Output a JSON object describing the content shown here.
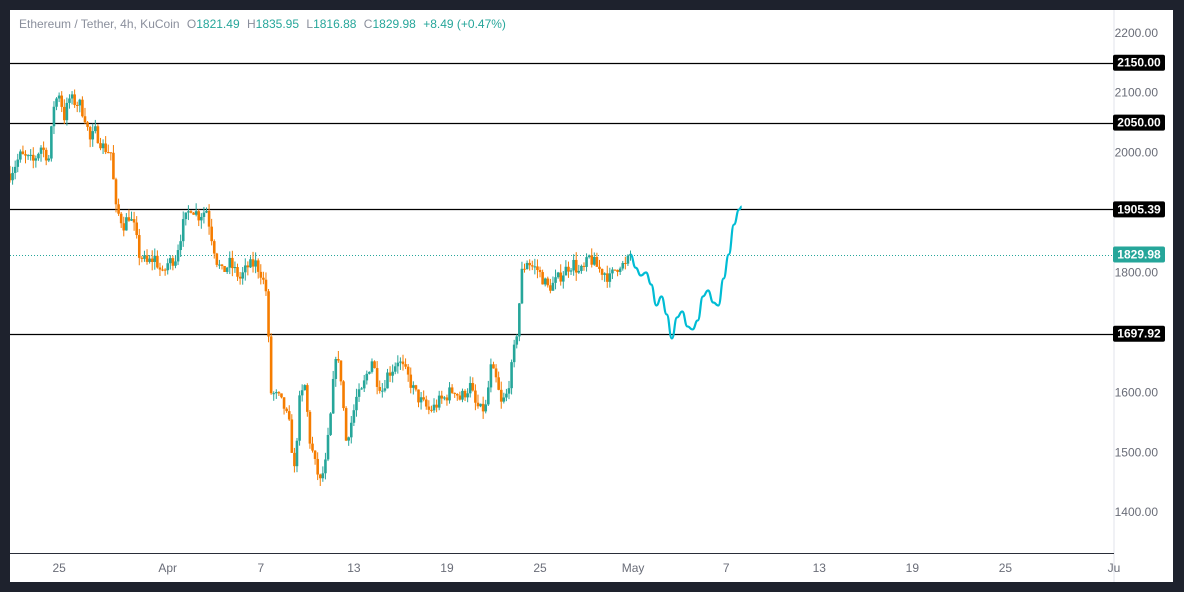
{
  "legend": {
    "symbol": "Ethereum / Tether, 4h, KuCoin",
    "open_key": "O",
    "open": "1821.49",
    "high_key": "H",
    "high": "1835.95",
    "low_key": "L",
    "low": "1816.88",
    "close_key": "C",
    "close": "1829.98",
    "change": "+8.49 (+0.47%)"
  },
  "colors": {
    "up": "#26a69a",
    "down": "#f57c00",
    "projection": "#00bcd4",
    "level": "#000000",
    "price_label": "#26a69a"
  },
  "chart_data": {
    "type": "candlestick",
    "title": "",
    "ylim": [
      1332,
      2238
    ],
    "xlim": [
      "2023-03-21T20:00",
      "2023-06-01T00:00"
    ],
    "y_ticks": [
      "1400.00",
      "1500.00",
      "1600.00",
      "1700.00",
      "1800.00",
      "1900.00",
      "2000.00",
      "2100.00",
      "2200.00"
    ],
    "x_ticks": [
      {
        "label": "25",
        "date": "2023-03-25"
      },
      {
        "label": "Apr",
        "date": "2023-04-01"
      },
      {
        "label": "7",
        "date": "2023-04-07"
      },
      {
        "label": "13",
        "date": "2023-04-13"
      },
      {
        "label": "19",
        "date": "2023-04-19"
      },
      {
        "label": "25",
        "date": "2023-04-25"
      },
      {
        "label": "May",
        "date": "2023-05-01"
      },
      {
        "label": "7",
        "date": "2023-05-07"
      },
      {
        "label": "13",
        "date": "2023-05-13"
      },
      {
        "label": "19",
        "date": "2023-05-19"
      },
      {
        "label": "25",
        "date": "2023-05-25"
      },
      {
        "label": "Ju",
        "date": "2023-06-01"
      }
    ],
    "levels": [
      {
        "value": 2150.0,
        "label": "2150.00"
      },
      {
        "value": 2050.0,
        "label": "2050.00"
      },
      {
        "value": 1905.39,
        "label": "1905.39"
      },
      {
        "value": 1697.92,
        "label": "1697.92"
      }
    ],
    "last_price": {
      "value": 1829.98,
      "label": "1829.98"
    },
    "price_path": [
      [
        "2023-03-21T20:00",
        1965
      ],
      [
        "2023-03-22T12:00",
        1995
      ],
      [
        "2023-03-23T08:00",
        1985
      ],
      [
        "2023-03-23T20:00",
        2010
      ],
      [
        "2023-03-24T08:00",
        1990
      ],
      [
        "2023-03-24T16:00",
        2080
      ],
      [
        "2023-03-25T00:00",
        2100
      ],
      [
        "2023-03-25T08:00",
        2060
      ],
      [
        "2023-03-25T16:00",
        2090
      ],
      [
        "2023-03-26T08:00",
        2080
      ],
      [
        "2023-03-26T16:00",
        2060
      ],
      [
        "2023-03-27T00:00",
        2020
      ],
      [
        "2023-03-27T08:00",
        2035
      ],
      [
        "2023-03-27T20:00",
        2010
      ],
      [
        "2023-03-28T08:00",
        2000
      ],
      [
        "2023-03-28T16:00",
        1905
      ],
      [
        "2023-03-29T04:00",
        1880
      ],
      [
        "2023-03-29T12:00",
        1895
      ],
      [
        "2023-03-29T20:00",
        1875
      ],
      [
        "2023-03-30T04:00",
        1830
      ],
      [
        "2023-03-30T16:00",
        1815
      ],
      [
        "2023-03-31T04:00",
        1825
      ],
      [
        "2023-03-31T16:00",
        1795
      ],
      [
        "2023-04-01T00:00",
        1815
      ],
      [
        "2023-04-01T12:00",
        1825
      ],
      [
        "2023-04-02T00:00",
        1880
      ],
      [
        "2023-04-02T12:00",
        1910
      ],
      [
        "2023-04-03T00:00",
        1895
      ],
      [
        "2023-04-03T12:00",
        1905
      ],
      [
        "2023-04-03T20:00",
        1860
      ],
      [
        "2023-04-04T04:00",
        1820
      ],
      [
        "2023-04-04T12:00",
        1800
      ],
      [
        "2023-04-05T00:00",
        1815
      ],
      [
        "2023-04-05T16:00",
        1790
      ],
      [
        "2023-04-06T04:00",
        1810
      ],
      [
        "2023-04-06T16:00",
        1815
      ],
      [
        "2023-04-07T00:00",
        1800
      ],
      [
        "2023-04-07T08:00",
        1770
      ],
      [
        "2023-04-07T16:00",
        1600
      ],
      [
        "2023-04-08T04:00",
        1590
      ],
      [
        "2023-04-08T12:00",
        1575
      ],
      [
        "2023-04-08T20:00",
        1545
      ],
      [
        "2023-04-09T04:00",
        1470
      ],
      [
        "2023-04-09T12:00",
        1585
      ],
      [
        "2023-04-09T20:00",
        1610
      ],
      [
        "2023-04-10T04:00",
        1520
      ],
      [
        "2023-04-10T12:00",
        1480
      ],
      [
        "2023-04-10T20:00",
        1450
      ],
      [
        "2023-04-11T04:00",
        1480
      ],
      [
        "2023-04-11T12:00",
        1560
      ],
      [
        "2023-04-11T20:00",
        1665
      ],
      [
        "2023-04-12T04:00",
        1625
      ],
      [
        "2023-04-12T12:00",
        1520
      ],
      [
        "2023-04-12T20:00",
        1550
      ],
      [
        "2023-04-13T04:00",
        1590
      ],
      [
        "2023-04-13T12:00",
        1600
      ],
      [
        "2023-04-13T20:00",
        1630
      ],
      [
        "2023-04-14T04:00",
        1655
      ],
      [
        "2023-04-14T12:00",
        1620
      ],
      [
        "2023-04-14T20:00",
        1605
      ],
      [
        "2023-04-15T04:00",
        1630
      ],
      [
        "2023-04-15T12:00",
        1640
      ],
      [
        "2023-04-15T20:00",
        1655
      ],
      [
        "2023-04-16T04:00",
        1640
      ],
      [
        "2023-04-16T12:00",
        1625
      ],
      [
        "2023-04-16T20:00",
        1605
      ],
      [
        "2023-04-17T04:00",
        1590
      ],
      [
        "2023-04-17T12:00",
        1580
      ],
      [
        "2023-04-17T20:00",
        1570
      ],
      [
        "2023-04-18T04:00",
        1575
      ],
      [
        "2023-04-18T12:00",
        1585
      ],
      [
        "2023-04-18T20:00",
        1590
      ],
      [
        "2023-04-19T04:00",
        1600
      ],
      [
        "2023-04-19T12:00",
        1605
      ],
      [
        "2023-04-19T20:00",
        1590
      ],
      [
        "2023-04-20T04:00",
        1600
      ],
      [
        "2023-04-20T12:00",
        1610
      ],
      [
        "2023-04-20T20:00",
        1580
      ],
      [
        "2023-04-21T04:00",
        1570
      ],
      [
        "2023-04-21T12:00",
        1575
      ],
      [
        "2023-04-21T20:00",
        1640
      ],
      [
        "2023-04-22T04:00",
        1620
      ],
      [
        "2023-04-22T12:00",
        1580
      ],
      [
        "2023-04-22T20:00",
        1595
      ],
      [
        "2023-04-23T04:00",
        1640
      ],
      [
        "2023-04-23T12:00",
        1700
      ],
      [
        "2023-04-23T20:00",
        1800
      ],
      [
        "2023-04-24T04:00",
        1820
      ],
      [
        "2023-04-24T12:00",
        1810
      ],
      [
        "2023-04-24T20:00",
        1805
      ],
      [
        "2023-04-25T04:00",
        1790
      ],
      [
        "2023-04-25T12:00",
        1775
      ],
      [
        "2023-04-25T20:00",
        1780
      ],
      [
        "2023-04-26T04:00",
        1790
      ],
      [
        "2023-04-26T12:00",
        1800
      ],
      [
        "2023-04-26T20:00",
        1810
      ],
      [
        "2023-04-27T04:00",
        1815
      ],
      [
        "2023-04-27T12:00",
        1800
      ],
      [
        "2023-04-27T20:00",
        1805
      ],
      [
        "2023-04-28T04:00",
        1825
      ],
      [
        "2023-04-28T12:00",
        1815
      ],
      [
        "2023-04-28T20:00",
        1805
      ],
      [
        "2023-04-29T04:00",
        1800
      ],
      [
        "2023-04-29T12:00",
        1790
      ],
      [
        "2023-04-29T20:00",
        1805
      ],
      [
        "2023-04-30T04:00",
        1815
      ],
      [
        "2023-04-30T12:00",
        1810
      ],
      [
        "2023-04-30T20:00",
        1830
      ]
    ],
    "projection_path": [
      [
        "2023-04-30T20:00",
        1830
      ],
      [
        "2023-05-01T04:00",
        1808
      ],
      [
        "2023-05-01T12:00",
        1795
      ],
      [
        "2023-05-01T20:00",
        1800
      ],
      [
        "2023-05-02T04:00",
        1780
      ],
      [
        "2023-05-02T12:00",
        1745
      ],
      [
        "2023-05-02T20:00",
        1760
      ],
      [
        "2023-05-03T04:00",
        1730
      ],
      [
        "2023-05-03T12:00",
        1690
      ],
      [
        "2023-05-03T20:00",
        1725
      ],
      [
        "2023-05-04T04:00",
        1735
      ],
      [
        "2023-05-04T12:00",
        1710
      ],
      [
        "2023-05-04T20:00",
        1705
      ],
      [
        "2023-05-05T04:00",
        1720
      ],
      [
        "2023-05-05T12:00",
        1760
      ],
      [
        "2023-05-05T20:00",
        1770
      ],
      [
        "2023-05-06T04:00",
        1750
      ],
      [
        "2023-05-06T12:00",
        1745
      ],
      [
        "2023-05-06T20:00",
        1790
      ],
      [
        "2023-05-07T04:00",
        1830
      ],
      [
        "2023-05-07T12:00",
        1880
      ],
      [
        "2023-05-07T20:00",
        1905
      ],
      [
        "2023-05-08T00:00",
        1910
      ]
    ]
  }
}
